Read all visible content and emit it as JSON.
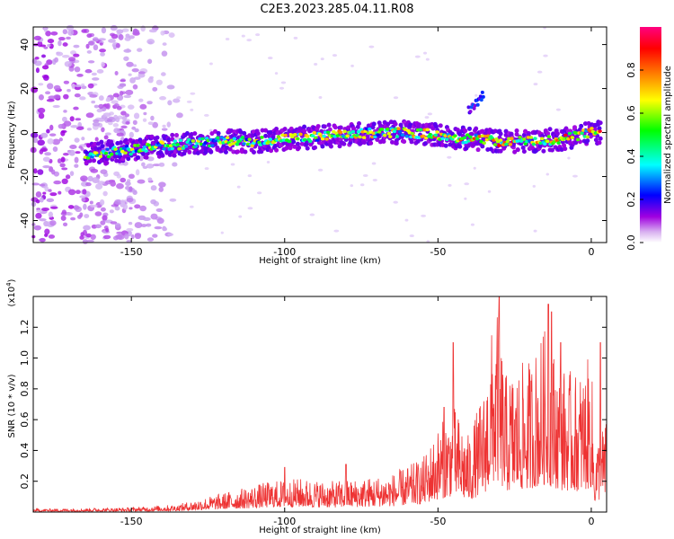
{
  "title": "C2E3.2023.285.04.11.R08",
  "chart_data": [
    {
      "type": "heatmap",
      "xlabel": "Height of straight line (km)",
      "ylabel": "Frequency (Hz)",
      "xlim": [
        -182,
        5
      ],
      "ylim": [
        -50,
        48
      ],
      "x_ticks": [
        -150,
        -100,
        -50,
        0
      ],
      "x_tick_labels": [
        "-150",
        "-100",
        "-50",
        "0"
      ],
      "y_ticks": [
        40,
        20,
        0,
        -20,
        -40
      ],
      "y_tick_labels": [
        "40",
        "20",
        "0",
        "-20",
        "-40"
      ],
      "colorbar": {
        "label": "Normalized spectral amplitude",
        "range": [
          0,
          1
        ],
        "ticks": [
          0.0,
          0.2,
          0.4,
          0.6,
          0.8
        ],
        "tick_labels": [
          "0.0",
          "0.2",
          "0.4",
          "0.6",
          "0.8"
        ],
        "colors": [
          "#ffffff",
          "#a000e0",
          "#0000ff",
          "#00ffff",
          "#00ff00",
          "#ffff00",
          "#ff8000",
          "#ff0000",
          "#ff0080"
        ]
      },
      "ridge": {
        "x": [
          -165,
          -150,
          -140,
          -130,
          -120,
          -110,
          -100,
          -90,
          -80,
          -70,
          -60,
          -50,
          -45,
          -40,
          -35,
          -30,
          -20,
          -10,
          0,
          3
        ],
        "y": [
          -10,
          -8,
          -6,
          -5,
          -4,
          -4,
          -3,
          -2,
          -1,
          0,
          0,
          -1,
          -2,
          -3,
          -3,
          -4,
          -4,
          -3,
          0,
          0
        ]
      },
      "branch": {
        "x": [
          -40,
          -35
        ],
        "y": [
          10,
          17
        ]
      },
      "noise_region_x": [
        -182,
        -132
      ]
    },
    {
      "type": "line",
      "xlabel": "Height of straight line (km)",
      "ylabel": "SNR (10 * v/v)",
      "y_multiplier": "(x10",
      "y_multiplier_exponent": "4",
      "xlim": [
        -182,
        5
      ],
      "ylim": [
        0,
        1.4
      ],
      "x_ticks": [
        -150,
        -100,
        -50,
        0
      ],
      "x_tick_labels": [
        "-150",
        "-100",
        "-50",
        "0"
      ],
      "y_ticks": [
        0.2,
        0.4,
        0.6,
        0.8,
        1.0,
        1.2
      ],
      "y_tick_labels": [
        "0.2",
        "0.4",
        "0.6",
        "0.8",
        "1.0",
        "1.2"
      ],
      "series": [
        {
          "color": "#ee3333",
          "envelope": {
            "x": [
              -182,
              -150,
              -135,
              -125,
              -115,
              -105,
              -95,
              -85,
              -75,
              -65,
              -55,
              -50,
              -45,
              -40,
              -35,
              -31,
              -28,
              -20,
              -15,
              -10,
              -5,
              -2,
              0,
              1,
              3,
              5
            ],
            "y": [
              0.02,
              0.03,
              0.05,
              0.1,
              0.15,
              0.2,
              0.22,
              0.2,
              0.22,
              0.25,
              0.35,
              0.55,
              0.7,
              0.5,
              0.8,
              1.4,
              0.9,
              1.0,
              1.2,
              0.95,
              0.9,
              0.95,
              1.05,
              0.4,
              0.55,
              0.6
            ]
          },
          "peaks": [
            {
              "x": -100,
              "y": 0.29
            },
            {
              "x": -80,
              "y": 0.31
            },
            {
              "x": -48,
              "y": 0.68
            },
            {
              "x": -45,
              "y": 1.1
            },
            {
              "x": -30,
              "y": 1.4
            },
            {
              "x": -14,
              "y": 1.35
            },
            {
              "x": -13,
              "y": 1.3
            },
            {
              "x": -10,
              "y": 1.1
            },
            {
              "x": 3,
              "y": 1.1
            }
          ]
        }
      ]
    }
  ]
}
